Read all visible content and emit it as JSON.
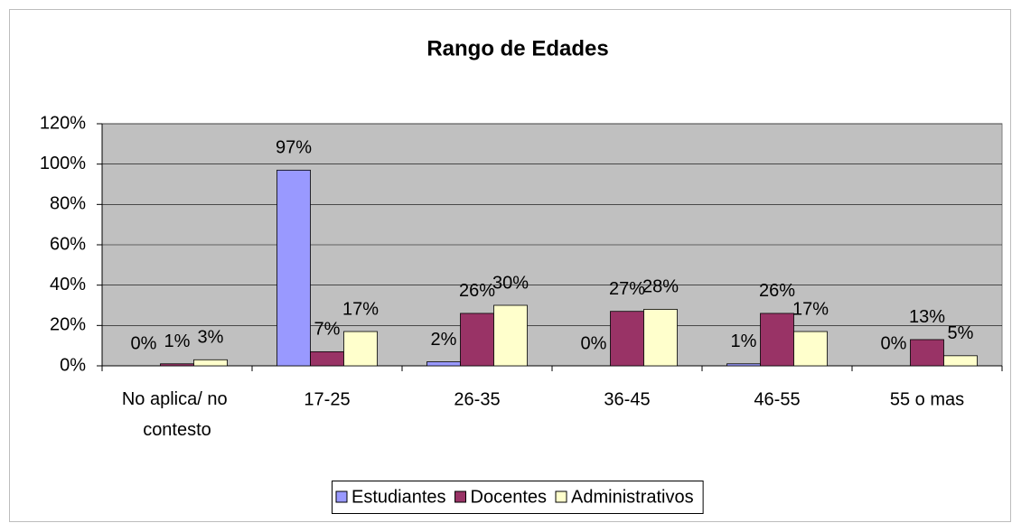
{
  "chart_data": {
    "type": "bar",
    "title": "Rango de Edades",
    "categories": [
      "No aplica/ no contesto",
      "17-25",
      "26-35",
      "36-45",
      "46-55",
      "55 o mas"
    ],
    "series": [
      {
        "name": "Estudiantes",
        "color": "#9999ff",
        "values": [
          0,
          97,
          2,
          0,
          1,
          0
        ],
        "value_labels": [
          "0%",
          "97%",
          "2%",
          "0%",
          "1%",
          "0%"
        ]
      },
      {
        "name": "Docentes",
        "color": "#993366",
        "values": [
          1,
          7,
          26,
          27,
          26,
          13
        ],
        "value_labels": [
          "1%",
          "7%",
          "26%",
          "27%",
          "26%",
          "13%"
        ]
      },
      {
        "name": "Administrativos",
        "color": "#ffffcc",
        "values": [
          3,
          17,
          30,
          28,
          17,
          5
        ],
        "value_labels": [
          "3%",
          "17%",
          "30%",
          "28%",
          "17%",
          "5%"
        ]
      }
    ],
    "ylim": [
      0,
      120
    ],
    "yticks": [
      {
        "value": 0,
        "label": "0%"
      },
      {
        "value": 20,
        "label": "20%"
      },
      {
        "value": 40,
        "label": "40%"
      },
      {
        "value": 60,
        "label": "60%"
      },
      {
        "value": 80,
        "label": "80%"
      },
      {
        "value": 100,
        "label": "100%"
      },
      {
        "value": 120,
        "label": "120%"
      }
    ],
    "grid": true,
    "plot_background": "#c0c0c0",
    "legend": "bottom"
  }
}
